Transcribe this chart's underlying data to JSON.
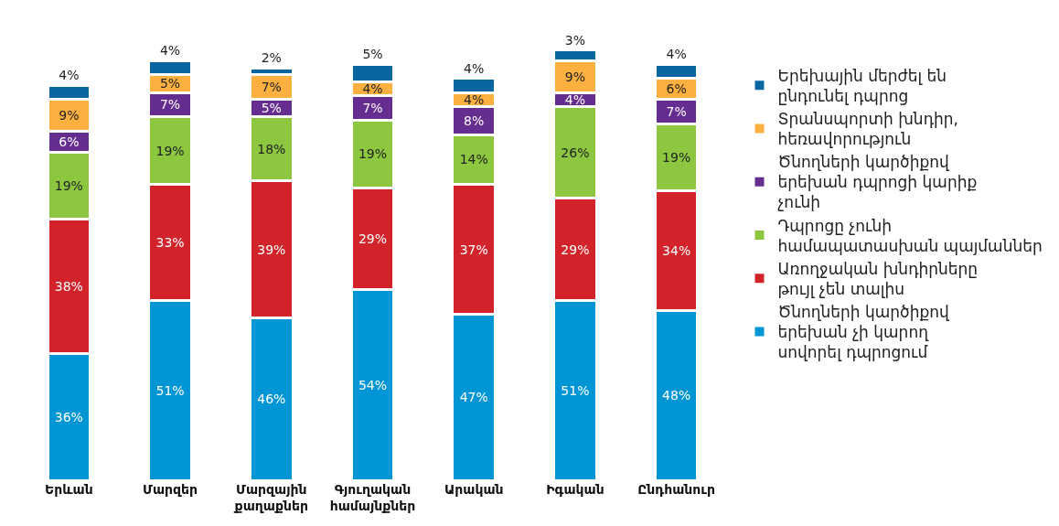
{
  "chart_data": {
    "type": "bar",
    "stacked": true,
    "legend": "right",
    "categories": [
      "Երևան",
      "Մարզեր",
      "Մարզային քաղաքներ",
      "Գյուղական համայնքներ",
      "Արական",
      "Իգական",
      "Ընդհանուր"
    ],
    "series": [
      {
        "name": "Ծնողների կարծիքով երեխան չի կարող սովորել դպրոցում",
        "color": "#0096d6",
        "values": [
          36,
          51,
          46,
          54,
          47,
          51,
          48
        ],
        "value_labels": [
          "36%",
          "51%",
          "46%",
          "54%",
          "47%",
          "51%",
          "48%"
        ]
      },
      {
        "name": "Առողջական խնդիրները թույլ չեն տալիս",
        "color": "#d2232a",
        "values": [
          38,
          33,
          39,
          29,
          37,
          29,
          34
        ],
        "value_labels": [
          "38%",
          "33%",
          "39%",
          "29%",
          "37%",
          "29%",
          "34%"
        ]
      },
      {
        "name": "Դպրոցը չունի համապատասխան պայմաններ",
        "color": "#8dc63f",
        "values": [
          19,
          19,
          18,
          19,
          14,
          26,
          19
        ],
        "value_labels": [
          "19%",
          "19%",
          "18%",
          "19%",
          "14%",
          "26%",
          "19%"
        ]
      },
      {
        "name": "Ծնողների կարծիքով երեխան դպրոցի կարիք չունի",
        "color": "#662d91",
        "values": [
          6,
          7,
          5,
          7,
          8,
          4,
          7
        ],
        "value_labels": [
          "6%",
          "7%",
          "5%",
          "7%",
          "8%",
          "4%",
          "7%"
        ]
      },
      {
        "name": "Տրանսպորտի խնդիր, հեռավորություն",
        "color": "#fbb040",
        "values": [
          9,
          5,
          7,
          4,
          4,
          9,
          6
        ],
        "value_labels": [
          "9%",
          "5%",
          "7%",
          "4%",
          "4%",
          "9%",
          "6%"
        ]
      },
      {
        "name": "Երեխային մերժել են ընդունել դպրոց",
        "color": "#0a66a0",
        "values": [
          4,
          4,
          2,
          5,
          4,
          3,
          4
        ],
        "value_labels": [
          "4%",
          "4%",
          "2%",
          "5%",
          "4%",
          "3%",
          "4%"
        ]
      }
    ]
  }
}
